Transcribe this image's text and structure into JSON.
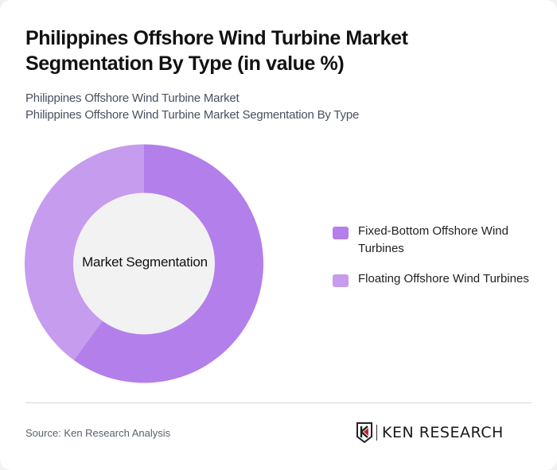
{
  "header": {
    "title": "Philippines Offshore Wind Turbine Market Segmentation By Type (in value %)",
    "subtitle_line1": "Philippines Offshore Wind Turbine Market",
    "subtitle_line2": "Philippines Offshore Wind Turbine Market Segmentation By Type"
  },
  "chart": {
    "center_label": "Market Segmentation"
  },
  "legend": {
    "items": [
      {
        "label": "Fixed-Bottom Offshore Wind Turbines",
        "color": "#b37fea"
      },
      {
        "label": "Floating Offshore Wind Turbines",
        "color": "#c69cee"
      }
    ]
  },
  "footer": {
    "source": "Source: Ken Research Analysis",
    "logo_text": "KEN RESEARCH"
  },
  "colors": {
    "fixed_bottom": "#b37fea",
    "floating": "#c69cee",
    "donut_hole": "#f2f2f2"
  },
  "chart_data": {
    "type": "pie",
    "title": "Philippines Offshore Wind Turbine Market Segmentation By Type (in value %)",
    "subtitle": "Philippines Offshore Wind Turbine Market Segmentation By Type",
    "center_label": "Market Segmentation",
    "categories": [
      "Fixed-Bottom Offshore Wind Turbines",
      "Floating Offshore Wind Turbines"
    ],
    "values": [
      60,
      40
    ],
    "units": "%",
    "donut": true,
    "legend_position": "right"
  }
}
